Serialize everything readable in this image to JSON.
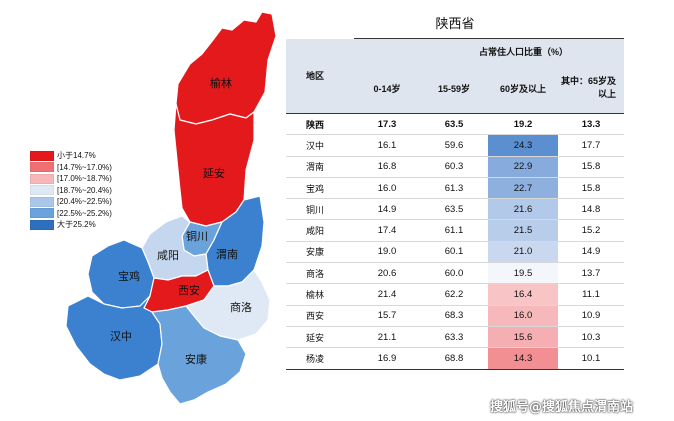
{
  "map": {
    "regions": [
      {
        "name": "榆林",
        "fill": "#e3191c"
      },
      {
        "name": "延安",
        "fill": "#e3191c"
      },
      {
        "name": "铜川",
        "fill": "#6aa2dc"
      },
      {
        "name": "渭南",
        "fill": "#3b81cf"
      },
      {
        "name": "咸阳",
        "fill": "#c4d7ee"
      },
      {
        "name": "宝鸡",
        "fill": "#3b81cf"
      },
      {
        "name": "西安",
        "fill": "#e3191c"
      },
      {
        "name": "商洛",
        "fill": "#dfe8f5"
      },
      {
        "name": "汉中",
        "fill": "#3b81cf"
      },
      {
        "name": "安康",
        "fill": "#6aa2dc"
      }
    ]
  },
  "legend": [
    {
      "label": "小于14.7%",
      "color": "#e3191c"
    },
    {
      "label": "[14.7%~17.0%)",
      "color": "#f06f73"
    },
    {
      "label": "[17.0%~18.7%)",
      "color": "#f8b6b8"
    },
    {
      "label": "[18.7%~20.4%)",
      "color": "#dfe8f5"
    },
    {
      "label": "[20.4%~22.5%)",
      "color": "#aac7ea"
    },
    {
      "label": "[22.5%~25.2%)",
      "color": "#6aa2dc"
    },
    {
      "label": "大于25.2%",
      "color": "#2f6fbf"
    }
  ],
  "table": {
    "title": "陕西省",
    "super_header": "占常住人口比重（%）",
    "region_header": "地区",
    "columns": [
      "0-14岁",
      "15-59岁",
      "60岁及以上",
      "其中：65岁及以上"
    ],
    "rows": [
      {
        "region": "陕西",
        "c0": "17.3",
        "c1": "63.5",
        "c2": "19.2",
        "c3": "13.3",
        "bg": "#ffffff"
      },
      {
        "region": "汉中",
        "c0": "16.1",
        "c1": "59.6",
        "c2": "24.3",
        "c3": "17.7",
        "bg": "#5b8fd0"
      },
      {
        "region": "渭南",
        "c0": "16.8",
        "c1": "60.3",
        "c2": "22.9",
        "c3": "15.8",
        "bg": "#86abdc"
      },
      {
        "region": "宝鸡",
        "c0": "16.0",
        "c1": "61.3",
        "c2": "22.7",
        "c3": "15.8",
        "bg": "#8eb0de"
      },
      {
        "region": "铜川",
        "c0": "14.9",
        "c1": "63.5",
        "c2": "21.6",
        "c3": "14.8",
        "bg": "#b3c9e9"
      },
      {
        "region": "咸阳",
        "c0": "17.4",
        "c1": "61.1",
        "c2": "21.5",
        "c3": "15.2",
        "bg": "#b7cdea"
      },
      {
        "region": "安康",
        "c0": "19.0",
        "c1": "60.1",
        "c2": "21.0",
        "c3": "14.9",
        "bg": "#c9d8ef"
      },
      {
        "region": "商洛",
        "c0": "20.6",
        "c1": "60.0",
        "c2": "19.5",
        "c3": "13.7",
        "bg": "#f3f6fb"
      },
      {
        "region": "榆林",
        "c0": "21.4",
        "c1": "62.2",
        "c2": "16.4",
        "c3": "11.1",
        "bg": "#f8c4c6"
      },
      {
        "region": "西安",
        "c0": "15.7",
        "c1": "68.3",
        "c2": "16.0",
        "c3": "10.9",
        "bg": "#f6b8bb"
      },
      {
        "region": "延安",
        "c0": "21.1",
        "c1": "63.3",
        "c2": "15.6",
        "c3": "10.3",
        "bg": "#f5afb2"
      },
      {
        "region": "杨凌",
        "c0": "16.9",
        "c1": "68.8",
        "c2": "14.3",
        "c3": "10.1",
        "bg": "#f18f93"
      }
    ]
  },
  "watermark": "搜狐号@搜狐焦点渭南站"
}
